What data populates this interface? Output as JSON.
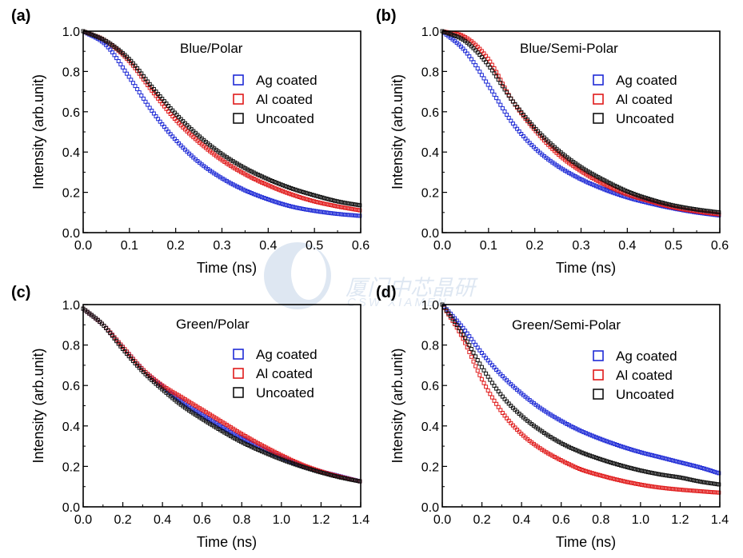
{
  "colors": {
    "ag": "#1f2bd6",
    "al": "#e01b1b",
    "un": "#111111"
  },
  "watermark": {
    "cn": "厦门中芯晶研",
    "en": "CSW XIAMEN"
  },
  "chart_data": [
    {
      "type": "scatter",
      "panel": "(a)",
      "title": "Blue/Polar",
      "xlabel": "Time  (ns)",
      "ylabel": "Intensity (arb.unit)",
      "xlim": [
        0,
        0.6
      ],
      "ylim": [
        0,
        1.0
      ],
      "xticks": [
        "0.0",
        "0.1",
        "0.2",
        "0.3",
        "0.4",
        "0.5",
        "0.6"
      ],
      "yticks": [
        "0.0",
        "0.2",
        "0.4",
        "0.6",
        "0.8",
        "1.0"
      ],
      "legend": "top-right",
      "series": [
        {
          "name": "Ag coated",
          "color": "ag",
          "x": [
            0,
            0.05,
            0.1,
            0.15,
            0.2,
            0.25,
            0.3,
            0.35,
            0.4,
            0.45,
            0.5,
            0.55,
            0.6
          ],
          "y": [
            1.0,
            0.93,
            0.77,
            0.6,
            0.46,
            0.35,
            0.27,
            0.21,
            0.165,
            0.13,
            0.108,
            0.093,
            0.083
          ]
        },
        {
          "name": "Al coated",
          "color": "al",
          "x": [
            0,
            0.05,
            0.1,
            0.15,
            0.2,
            0.25,
            0.3,
            0.35,
            0.4,
            0.45,
            0.5,
            0.55,
            0.6
          ],
          "y": [
            1.0,
            0.95,
            0.85,
            0.7,
            0.56,
            0.45,
            0.36,
            0.29,
            0.235,
            0.19,
            0.155,
            0.13,
            0.11
          ]
        },
        {
          "name": "Uncoated",
          "color": "un",
          "x": [
            0,
            0.05,
            0.1,
            0.15,
            0.2,
            0.25,
            0.3,
            0.35,
            0.4,
            0.45,
            0.5,
            0.55,
            0.6
          ],
          "y": [
            1.0,
            0.95,
            0.86,
            0.72,
            0.59,
            0.48,
            0.39,
            0.32,
            0.265,
            0.22,
            0.185,
            0.155,
            0.135
          ]
        }
      ]
    },
    {
      "type": "scatter",
      "panel": "(b)",
      "title": "Blue/Semi-Polar",
      "xlabel": "Time  (ns)",
      "ylabel": "Intensity (arb.unit)",
      "xlim": [
        0,
        0.6
      ],
      "ylim": [
        0,
        1.0
      ],
      "xticks": [
        "0.0",
        "0.1",
        "0.2",
        "0.3",
        "0.4",
        "0.5",
        "0.6"
      ],
      "yticks": [
        "0.0",
        "0.2",
        "0.4",
        "0.6",
        "0.8",
        "1.0"
      ],
      "legend": "top-right",
      "series": [
        {
          "name": "Ag coated",
          "color": "ag",
          "x": [
            0,
            0.05,
            0.1,
            0.15,
            0.2,
            0.25,
            0.3,
            0.35,
            0.4,
            0.45,
            0.5,
            0.55,
            0.6
          ],
          "y": [
            1.0,
            0.9,
            0.73,
            0.55,
            0.42,
            0.33,
            0.265,
            0.215,
            0.175,
            0.145,
            0.12,
            0.1,
            0.085
          ]
        },
        {
          "name": "Al coated",
          "color": "al",
          "x": [
            0,
            0.05,
            0.1,
            0.15,
            0.2,
            0.25,
            0.3,
            0.35,
            0.4,
            0.45,
            0.5,
            0.55,
            0.6
          ],
          "y": [
            1.0,
            0.97,
            0.86,
            0.66,
            0.51,
            0.39,
            0.305,
            0.24,
            0.19,
            0.155,
            0.125,
            0.105,
            0.09
          ]
        },
        {
          "name": "Uncoated",
          "color": "un",
          "x": [
            0,
            0.05,
            0.1,
            0.15,
            0.2,
            0.25,
            0.3,
            0.35,
            0.4,
            0.45,
            0.5,
            0.55,
            0.6
          ],
          "y": [
            1.0,
            0.95,
            0.83,
            0.66,
            0.52,
            0.41,
            0.325,
            0.26,
            0.205,
            0.165,
            0.135,
            0.115,
            0.1
          ]
        }
      ]
    },
    {
      "type": "scatter",
      "panel": "(c)",
      "title": "Green/Polar",
      "xlabel": "Time (ns)",
      "ylabel": "Intensity (arb.unit)",
      "xlim": [
        0,
        1.4
      ],
      "ylim": [
        0,
        1.0
      ],
      "xticks": [
        "0.0",
        "0.2",
        "0.4",
        "0.6",
        "0.8",
        "1.0",
        "1.2",
        "1.4"
      ],
      "yticks": [
        "0.0",
        "0.2",
        "0.4",
        "0.6",
        "0.8",
        "1.0"
      ],
      "legend": "top-right",
      "series": [
        {
          "name": "Ag coated",
          "color": "ag",
          "x": [
            0,
            0.1,
            0.2,
            0.3,
            0.4,
            0.5,
            0.6,
            0.7,
            0.8,
            0.9,
            1.0,
            1.1,
            1.2,
            1.3,
            1.4
          ],
          "y": [
            0.98,
            0.9,
            0.79,
            0.68,
            0.595,
            0.52,
            0.455,
            0.395,
            0.34,
            0.29,
            0.245,
            0.205,
            0.175,
            0.15,
            0.125
          ]
        },
        {
          "name": "Al coated",
          "color": "al",
          "x": [
            0,
            0.1,
            0.2,
            0.3,
            0.4,
            0.5,
            0.6,
            0.7,
            0.8,
            0.9,
            1.0,
            1.1,
            1.2,
            1.3,
            1.4
          ],
          "y": [
            0.98,
            0.9,
            0.79,
            0.68,
            0.6,
            0.54,
            0.48,
            0.42,
            0.36,
            0.305,
            0.255,
            0.21,
            0.175,
            0.148,
            0.125
          ]
        },
        {
          "name": "Uncoated",
          "color": "un",
          "x": [
            0,
            0.1,
            0.2,
            0.3,
            0.4,
            0.5,
            0.6,
            0.7,
            0.8,
            0.9,
            1.0,
            1.1,
            1.2,
            1.3,
            1.4
          ],
          "y": [
            0.98,
            0.9,
            0.78,
            0.67,
            0.58,
            0.5,
            0.435,
            0.375,
            0.32,
            0.275,
            0.235,
            0.2,
            0.17,
            0.145,
            0.125
          ]
        }
      ]
    },
    {
      "type": "scatter",
      "panel": "(d)",
      "title": "Green/Semi-Polar",
      "xlabel": "Time (ns)",
      "ylabel": "Intensity (arb.unit)",
      "xlim": [
        0,
        1.4
      ],
      "ylim": [
        0,
        1.0
      ],
      "xticks": [
        "0.0",
        "0.2",
        "0.4",
        "0.6",
        "0.8",
        "1.0",
        "1.2",
        "1.4"
      ],
      "yticks": [
        "0.0",
        "0.2",
        "0.4",
        "0.6",
        "0.8",
        "1.0"
      ],
      "legend": "top-right",
      "series": [
        {
          "name": "Ag coated",
          "color": "ag",
          "x": [
            0,
            0.1,
            0.2,
            0.3,
            0.4,
            0.5,
            0.6,
            0.7,
            0.8,
            0.9,
            1.0,
            1.1,
            1.2,
            1.3,
            1.4
          ],
          "y": [
            1.0,
            0.89,
            0.76,
            0.65,
            0.56,
            0.485,
            0.425,
            0.375,
            0.335,
            0.3,
            0.27,
            0.245,
            0.22,
            0.195,
            0.165
          ]
        },
        {
          "name": "Al coated",
          "color": "al",
          "x": [
            0,
            0.1,
            0.2,
            0.3,
            0.4,
            0.5,
            0.6,
            0.7,
            0.8,
            0.9,
            1.0,
            1.1,
            1.2,
            1.3,
            1.4
          ],
          "y": [
            1.0,
            0.84,
            0.63,
            0.47,
            0.36,
            0.285,
            0.23,
            0.185,
            0.155,
            0.13,
            0.11,
            0.095,
            0.085,
            0.077,
            0.07
          ]
        },
        {
          "name": "Uncoated",
          "color": "un",
          "x": [
            0,
            0.1,
            0.2,
            0.3,
            0.4,
            0.5,
            0.6,
            0.7,
            0.8,
            0.9,
            1.0,
            1.1,
            1.2,
            1.3,
            1.4
          ],
          "y": [
            1.0,
            0.86,
            0.69,
            0.55,
            0.45,
            0.375,
            0.315,
            0.27,
            0.235,
            0.205,
            0.18,
            0.16,
            0.145,
            0.125,
            0.11
          ]
        }
      ]
    }
  ]
}
